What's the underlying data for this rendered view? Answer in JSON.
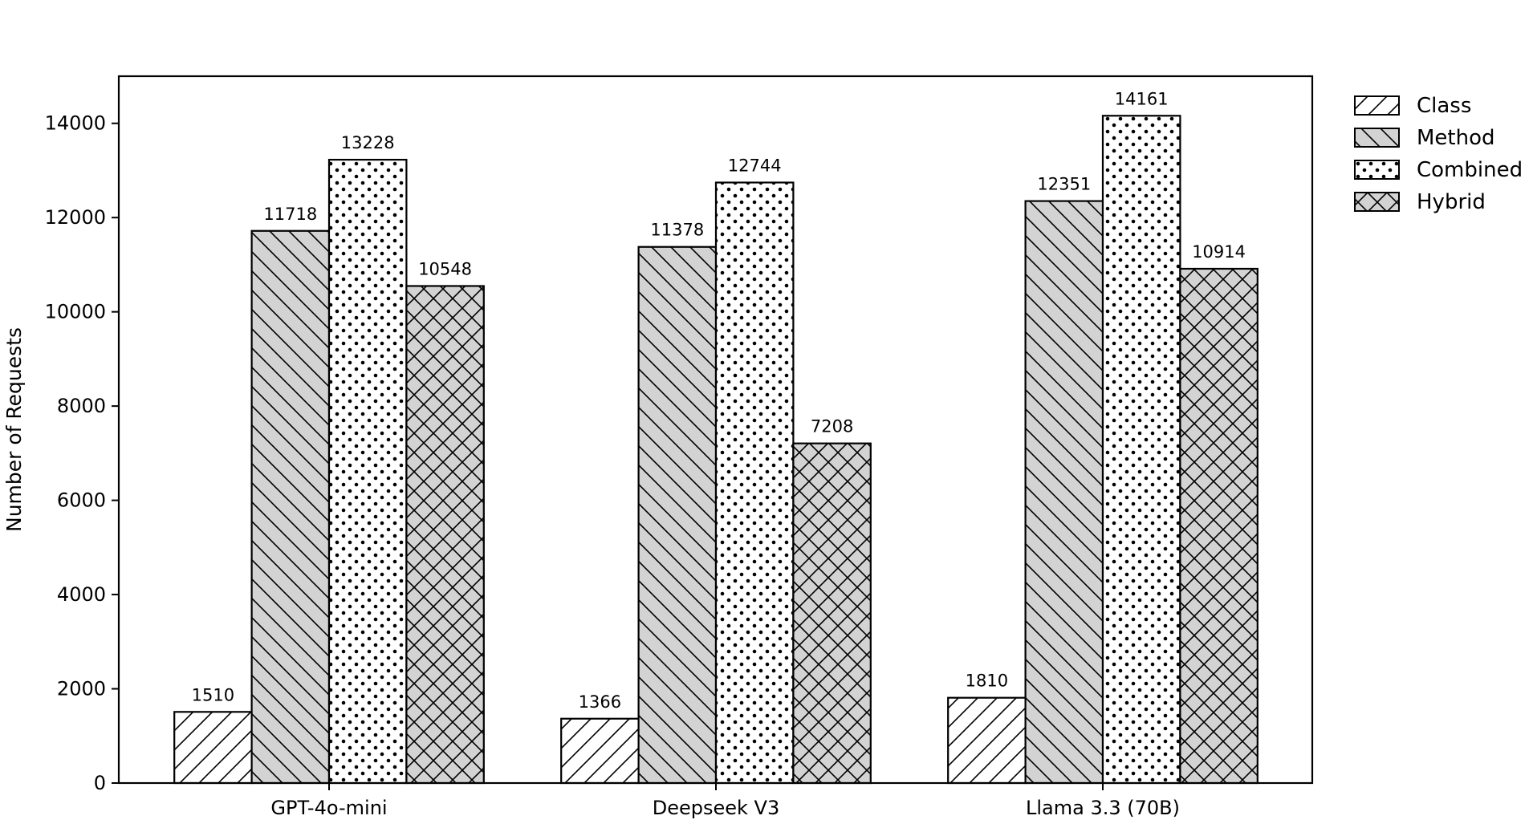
{
  "chart_data": {
    "type": "bar",
    "title": "",
    "xlabel": "",
    "ylabel": "Number of Requests",
    "categories": [
      "GPT-4o-mini",
      "Deepseek V3",
      "Llama 3.3 (70B)"
    ],
    "series": [
      {
        "name": "Class",
        "values": [
          1510,
          1366,
          1810
        ],
        "fill": "#ffffff",
        "hatch": "forward-diagonal"
      },
      {
        "name": "Method",
        "values": [
          11718,
          11378,
          12351
        ],
        "fill": "#d3d3d3",
        "hatch": "back-diagonal"
      },
      {
        "name": "Combined",
        "values": [
          13228,
          12744,
          14161
        ],
        "fill": "#ffffff",
        "hatch": "dots"
      },
      {
        "name": "Hybrid",
        "values": [
          10548,
          7208,
          10914
        ],
        "fill": "#d3d3d3",
        "hatch": "crosshatch"
      }
    ],
    "ylim": [
      0,
      15000
    ],
    "yticks": [
      0,
      2000,
      4000,
      6000,
      8000,
      10000,
      12000,
      14000
    ],
    "grid": false,
    "legend_position": "outside-top-right",
    "data_labels": true
  }
}
